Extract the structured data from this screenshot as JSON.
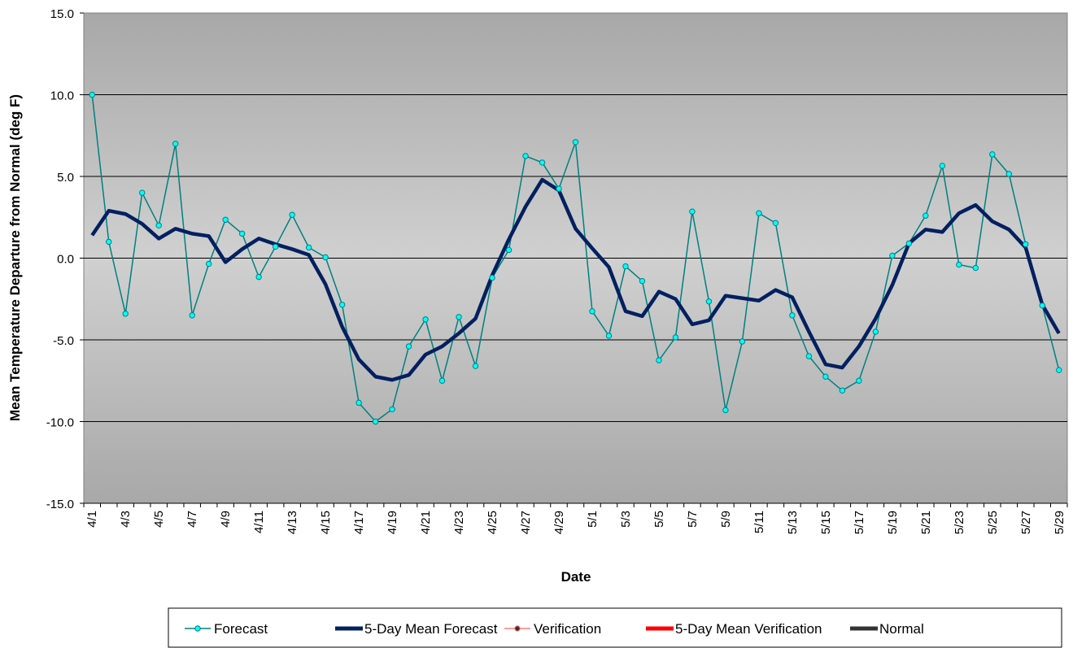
{
  "chart_data": {
    "type": "line",
    "title": "",
    "xlabel": "Date",
    "ylabel": "Mean Temperature Departure from Normal (deg F)",
    "ylim": [
      -15,
      15
    ],
    "y_ticks": [
      "15.0",
      "10.0",
      "5.0",
      "0.0",
      "-5.0",
      "-10.0",
      "-15.0"
    ],
    "grid": true,
    "legend_position": "bottom",
    "x": [
      "4/1",
      "4/2",
      "4/3",
      "4/4",
      "4/5",
      "4/6",
      "4/7",
      "4/8",
      "4/9",
      "4/10",
      "4/11",
      "4/12",
      "4/13",
      "4/14",
      "4/15",
      "4/16",
      "4/17",
      "4/18",
      "4/19",
      "4/20",
      "4/21",
      "4/22",
      "4/23",
      "4/24",
      "4/25",
      "4/26",
      "4/27",
      "4/28",
      "4/29",
      "4/30",
      "5/1",
      "5/2",
      "5/3",
      "5/4",
      "5/5",
      "5/6",
      "5/7",
      "5/8",
      "5/9",
      "5/10",
      "5/11",
      "5/12",
      "5/13",
      "5/14",
      "5/15",
      "5/16",
      "5/17",
      "5/18",
      "5/19",
      "5/20",
      "5/21",
      "5/22",
      "5/23",
      "5/24",
      "5/25",
      "5/26",
      "5/27",
      "5/28",
      "5/29"
    ],
    "x_tick_labels": [
      "4/1",
      "4/3",
      "4/5",
      "4/7",
      "4/9",
      "4/11",
      "4/13",
      "4/15",
      "4/17",
      "4/19",
      "4/21",
      "4/23",
      "4/25",
      "4/27",
      "4/29",
      "5/1",
      "5/3",
      "5/5",
      "5/7",
      "5/9",
      "5/11",
      "5/13",
      "5/15",
      "5/17",
      "5/19",
      "5/21",
      "5/23",
      "5/25",
      "5/27",
      "5/29"
    ],
    "series": [
      {
        "name": "Forecast",
        "color": "#008080",
        "marker_color": "#00ffff",
        "values": [
          10.0,
          1.0,
          -3.4,
          4.0,
          2.0,
          7.0,
          -3.5,
          -0.35,
          2.35,
          1.5,
          -1.15,
          0.7,
          2.65,
          0.65,
          0.05,
          -2.85,
          -8.85,
          -10.0,
          -9.25,
          -5.4,
          -3.75,
          -7.5,
          -3.6,
          -6.6,
          -1.2,
          0.5,
          6.25,
          5.85,
          4.25,
          7.1,
          -3.25,
          -4.75,
          -0.5,
          -1.4,
          -6.25,
          -4.85,
          2.85,
          -2.65,
          -9.3,
          -5.1,
          2.75,
          2.15,
          -3.5,
          -6.0,
          -7.25,
          -8.1,
          -7.5,
          -4.5,
          0.15,
          0.9,
          2.6,
          5.65,
          -0.4,
          -0.6,
          6.35,
          5.15,
          0.85,
          -2.9,
          -6.85
        ]
      },
      {
        "name": "5-Day Mean Forecast",
        "color": "#002060",
        "values": [
          1.4,
          2.9,
          2.7,
          2.1,
          1.2,
          1.8,
          1.5,
          1.35,
          -0.25,
          0.55,
          1.2,
          0.85,
          0.55,
          0.2,
          -1.6,
          -4.2,
          -6.2,
          -7.25,
          -7.45,
          -7.15,
          -5.9,
          -5.4,
          -4.6,
          -3.7,
          -1.05,
          1.15,
          3.15,
          4.8,
          4.15,
          1.8,
          0.6,
          -0.55,
          -3.25,
          -3.55,
          -2.05,
          -2.5,
          -4.05,
          -3.8,
          -2.3,
          -2.45,
          -2.6,
          -1.95,
          -2.4,
          -4.5,
          -6.5,
          -6.7,
          -5.4,
          -3.7,
          -1.65,
          0.9,
          1.75,
          1.6,
          2.75,
          3.25,
          2.25,
          1.75,
          0.65,
          -2.85,
          -4.6
        ]
      }
    ],
    "legend": [
      {
        "label": "Forecast",
        "color": "#008080",
        "marker_color": "#00ffff",
        "style": "thin-marker"
      },
      {
        "label": "5-Day Mean Forecast",
        "color": "#002060",
        "style": "thick"
      },
      {
        "label": "Verification",
        "color": "#ff7f7f",
        "marker_color": "#333333",
        "style": "thin-marker"
      },
      {
        "label": "5-Day Mean Verification",
        "color": "#ff0000",
        "style": "thick"
      },
      {
        "label": "Normal",
        "color": "#333333",
        "style": "thick"
      }
    ]
  }
}
